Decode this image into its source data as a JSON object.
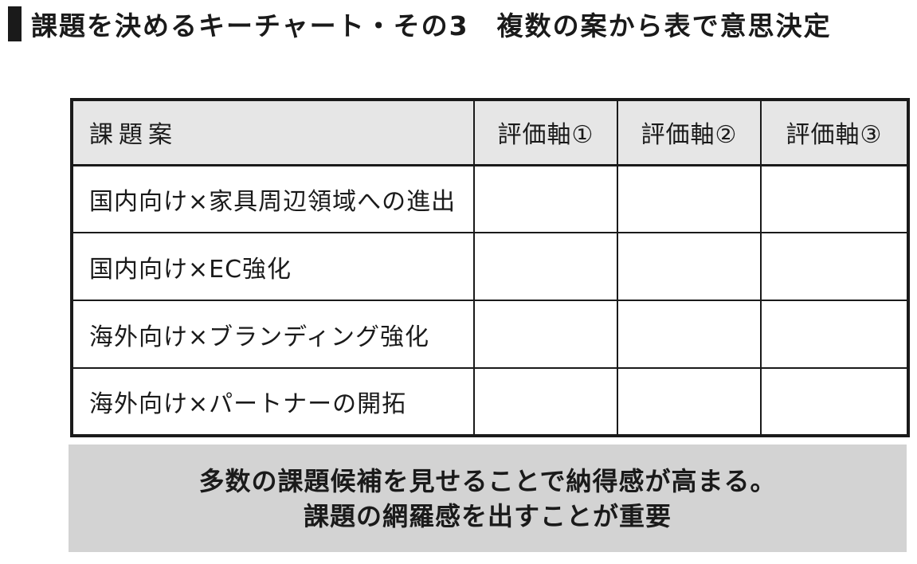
{
  "header": {
    "title": "課題を決めるキーチャート・その3　複数の案から表で意思決定"
  },
  "table": {
    "headers": [
      "課題案",
      "評価軸①",
      "評価軸②",
      "評価軸③"
    ],
    "rows": [
      {
        "label": "国内向け×家具周辺領域への進出",
        "values": [
          "",
          "",
          ""
        ]
      },
      {
        "label": "国内向け×EC強化",
        "values": [
          "",
          "",
          ""
        ]
      },
      {
        "label": "海外向け×ブランディング強化",
        "values": [
          "",
          "",
          ""
        ]
      },
      {
        "label": "海外向け×パートナーの開拓",
        "values": [
          "",
          "",
          ""
        ]
      }
    ]
  },
  "note": {
    "line1": "多数の課題候補を見せることで納得感が高まる。",
    "line2": "課題の網羅感を出すことが重要"
  },
  "colors": {
    "ink": "#1a1a1a",
    "header_bg": "#e6e6e6",
    "note_bg": "#d3d3d3"
  }
}
